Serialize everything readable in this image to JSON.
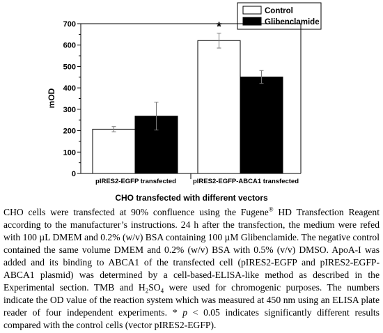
{
  "chart_data": {
    "type": "bar",
    "categories": [
      "pIRES2-EGFP transfected",
      "pIRES2-EGFP-ABCA1 transfected"
    ],
    "series": [
      {
        "name": "Control",
        "color": "#ffffff",
        "values": [
          207,
          621
        ],
        "errors": [
          12,
          35
        ]
      },
      {
        "name": "Glibenclamide",
        "color": "#000000",
        "values": [
          268,
          451
        ],
        "errors": [
          65,
          30
        ]
      }
    ],
    "xlabel": "CHO transfected with different vectors",
    "ylabel": "mOD",
    "ylim": [
      0,
      700
    ],
    "yticks": [
      0,
      100,
      200,
      300,
      400,
      500,
      600,
      700
    ],
    "grid": false,
    "legend": "top-right",
    "annotations": [
      {
        "text": "*",
        "category": 1,
        "series": 0
      }
    ]
  },
  "caption": {
    "p1": "CHO cells were transfected at 90% confluence using the Fugene",
    "p1_sup": "®",
    "p2": " HD Transfection Reagent according to the manufacturer’s instructions. 24 h after the transfection, the medium were refed with 100 µL DMEM and 0.2% (w/v) BSA containing 100 µM Glibenclamide. The negative control contained the same volume DMEM and 0.2% (w/v) BSA with 0.5% (v/v) DMSO. ApoA-I was added and its binding to ABCA1 of the transfected cell (pIRES2-EGFP and pIRES2-EGFP-ABCA1 plasmid) was determined by a cell-based-ELISA-like method as described in the Experimental section. TMB and H",
    "p2_sub": "2",
    "p3": "SO",
    "p3_sub": "4",
    "p4": " were used for chromogenic purposes. The numbers indicate the OD value of the reaction system which was measured at 450 nm using an ELISA plate reader of four independent experiments. * ",
    "p5_italic": "p",
    "p6": " < 0.05 indicates significantly different results compared with the control cells (vector pIRES2-EGFP)."
  }
}
